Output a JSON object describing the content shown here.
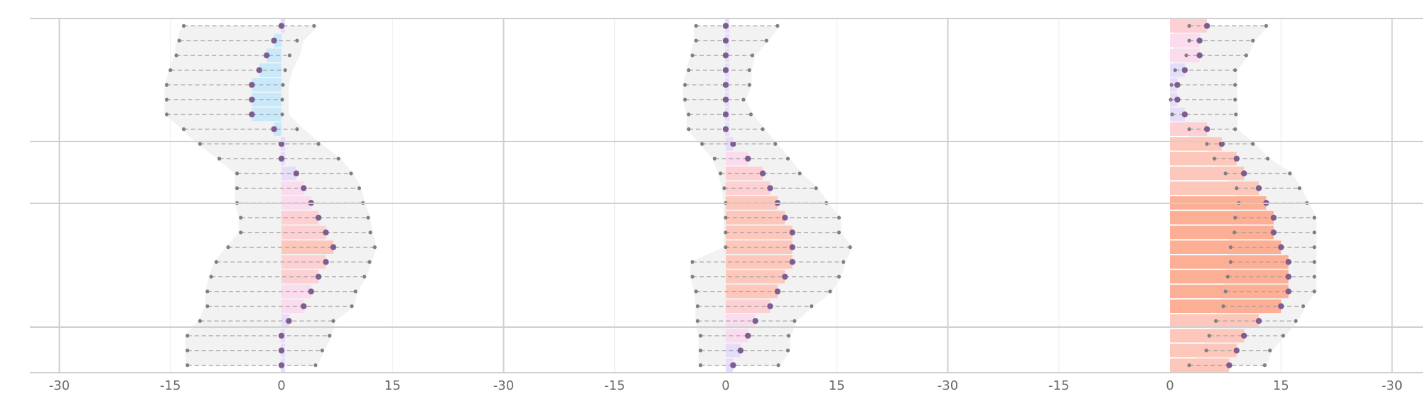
{
  "chart_data": {
    "type": "bar",
    "variant": "ranged-bar-with-dot-range",
    "title": "",
    "xlabel": "",
    "ylabel": "",
    "xlim": [
      -30,
      30
    ],
    "x_ticks": [
      -30,
      -15,
      0,
      15
    ],
    "grid": true,
    "rows": 24,
    "colors": {
      "band": "#f2f2f2",
      "dot": "#7d5d8f",
      "whisker": "#9a9a9a",
      "frame": "#cfcfcf",
      "scale": [
        "#c9e9fb",
        "#e6ddfb",
        "#fbdcee",
        "#fdd0d4",
        "#fdc8bb",
        "#fdaf95"
      ]
    },
    "panels": [
      {
        "id": "panel-1",
        "values": [
          0,
          -1,
          -2,
          -3,
          -4,
          -4,
          -4,
          -1,
          0,
          0,
          2,
          3,
          4,
          5,
          6,
          7,
          6,
          5,
          4,
          3,
          1,
          0,
          0,
          0
        ],
        "whisker_min": [
          -13.2,
          -13.8,
          -14.2,
          -15,
          -15.5,
          -15.5,
          -15.5,
          -13.2,
          -11,
          -8.4,
          -6,
          -6,
          -6,
          -5.5,
          -5.5,
          -7.2,
          -8.8,
          -9.5,
          -10,
          -10,
          -11,
          -12.7,
          -12.7,
          -12.7
        ],
        "whisker_max": [
          4.4,
          2.1,
          1.1,
          0.5,
          0.2,
          0.1,
          0.1,
          2.1,
          5,
          7.7,
          9.4,
          10.5,
          11,
          11.7,
          12,
          12.6,
          11.9,
          11.2,
          10,
          9.5,
          7,
          6.5,
          5.5,
          4.6
        ],
        "band_min": [
          -13.5,
          -14.2,
          -14.5,
          -15.2,
          -15.8,
          -15.8,
          -15.8,
          -13.5,
          -11.3,
          -8.7,
          -6.3,
          -6.3,
          -6.3,
          -5.8,
          -5.8,
          -7.5,
          -9.1,
          -9.8,
          -10.3,
          -10.3,
          -11.3,
          -13,
          -13,
          -13
        ],
        "band_max": [
          5,
          3,
          2.5,
          1.5,
          1,
          1,
          1,
          3,
          5.4,
          8,
          9.7,
          10.8,
          11.3,
          12,
          12.3,
          12.9,
          12.2,
          11.5,
          10.3,
          9.8,
          7.3,
          6.8,
          5.8,
          4.9
        ]
      },
      {
        "id": "panel-2",
        "values": [
          0,
          0,
          0,
          0,
          0,
          0,
          0,
          0,
          1,
          3,
          5,
          6,
          7,
          8,
          9,
          9,
          9,
          8,
          7,
          6,
          4,
          3,
          2,
          1
        ],
        "whisker_min": [
          -4,
          -4,
          -4.5,
          -5,
          -5.5,
          -5.5,
          -5,
          -5,
          -3.2,
          -1.5,
          -0.7,
          -0.2,
          0,
          0,
          0,
          0,
          -4.5,
          -4.5,
          -4,
          -3.8,
          -3.8,
          -3.4,
          -3.4,
          -3.4
        ],
        "whisker_max": [
          7,
          5.5,
          3.6,
          3.2,
          3.2,
          2.4,
          3.4,
          5,
          6.7,
          8.4,
          10,
          12.2,
          13.6,
          15.3,
          15.3,
          16.8,
          15.9,
          15.3,
          14.1,
          11.6,
          9.3,
          8.5,
          8.4,
          7.1
        ],
        "band_min": [
          -4.3,
          -4.3,
          -4.8,
          -5.3,
          -5.8,
          -5.8,
          -5.3,
          -5.3,
          -3.5,
          -1.8,
          -1,
          -0.5,
          -0.3,
          -0.3,
          -0.3,
          -0.3,
          -4.8,
          -4.8,
          -4.3,
          -4.1,
          -4.1,
          -3.7,
          -3.7,
          -3.7
        ],
        "band_max": [
          7.3,
          5.8,
          4,
          3.5,
          3.5,
          2.7,
          3.7,
          5.3,
          7,
          8.7,
          10.3,
          12.5,
          13.9,
          15.6,
          15.6,
          17.1,
          16.2,
          15.6,
          14.4,
          11.9,
          9.6,
          8.8,
          8.7,
          7.4
        ]
      },
      {
        "id": "panel-3",
        "values": [
          5,
          4,
          4,
          2,
          1,
          1,
          2,
          5,
          7,
          9,
          10,
          12,
          13,
          14,
          14,
          15,
          16,
          16,
          16,
          15,
          12,
          10,
          9,
          8
        ],
        "whisker_min": [
          2.6,
          2.6,
          2.2,
          0.7,
          0.2,
          0.1,
          0.3,
          2.6,
          5,
          6,
          7.5,
          9,
          9.3,
          8.8,
          8.7,
          8.2,
          8.2,
          7.8,
          7.5,
          7.2,
          6.2,
          5.3,
          4.9,
          2.6
        ],
        "whisker_max": [
          13,
          11.2,
          10.3,
          8.8,
          8.8,
          8.8,
          8.9,
          8.8,
          11.2,
          13.2,
          16.2,
          17.5,
          18.5,
          19.5,
          19.5,
          19.5,
          19.5,
          19.5,
          19.5,
          18,
          17,
          15.3,
          13.5,
          12.8
        ],
        "band_min": [
          0.5,
          0.5,
          0.5,
          0.3,
          0,
          0,
          0,
          0.5,
          4.6,
          5.6,
          7.1,
          8.6,
          8.9,
          8.4,
          8.3,
          7.8,
          7.8,
          7.4,
          7.1,
          6.8,
          5.8,
          4.9,
          4.5,
          2.2
        ],
        "band_max": [
          13.3,
          11.5,
          10.6,
          9.1,
          9.1,
          9.1,
          9.2,
          9.1,
          11.5,
          13.5,
          16.5,
          17.8,
          18.8,
          19.8,
          19.8,
          19.8,
          19.8,
          19.8,
          19.8,
          18.3,
          17.3,
          15.6,
          13.8,
          13.1
        ]
      }
    ]
  }
}
